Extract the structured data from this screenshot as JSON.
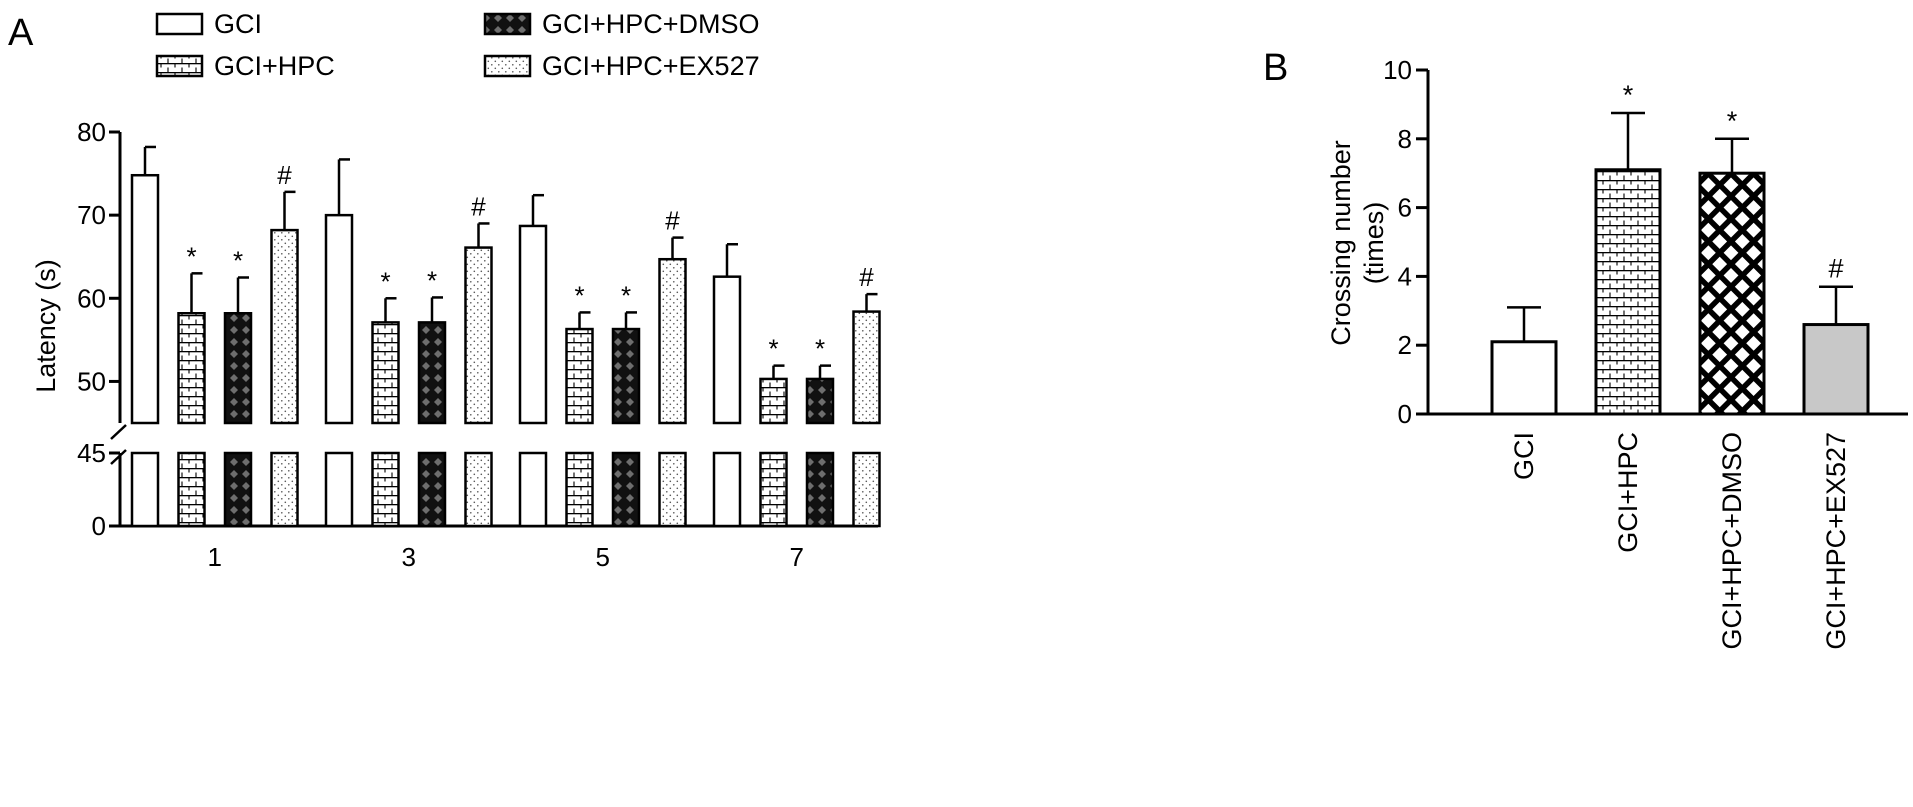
{
  "panels": {
    "a_label": "A",
    "b_label": "B"
  },
  "colors": {
    "ink": "#000000",
    "background": "#ffffff",
    "ex527_fill_panel_b": "#c8c8c8"
  },
  "chart_data": [
    {
      "panel": "A",
      "type": "bar",
      "ylabel": "Latency (s)",
      "xlabel": "",
      "y_axis": "broken",
      "ylim_lower": [
        0,
        45
      ],
      "ylim_upper": [
        45,
        80
      ],
      "yticks_lower": [
        "0",
        "45"
      ],
      "yticks_upper": [
        "50",
        "60",
        "70",
        "80"
      ],
      "categories": [
        "1",
        "3",
        "5",
        "7"
      ],
      "legend": [
        "GCI",
        "GCI+HPC",
        "GCI+HPC+DMSO",
        "GCI+HPC+EX527"
      ],
      "legend_placement": "top",
      "series": [
        {
          "name": "GCI",
          "pattern": "white",
          "values": [
            74.8,
            70.0,
            68.7,
            62.6
          ],
          "error": [
            3.4,
            6.7,
            3.7,
            3.9
          ],
          "marks": [
            "",
            "",
            "",
            ""
          ]
        },
        {
          "name": "GCI+HPC",
          "pattern": "brick",
          "values": [
            58.2,
            57.1,
            56.3,
            50.3
          ],
          "error": [
            4.8,
            2.9,
            2.0,
            1.6
          ],
          "marks": [
            "*",
            "*",
            "*",
            "*"
          ]
        },
        {
          "name": "GCI+HPC+DMSO",
          "pattern": "black-diamond",
          "values": [
            58.2,
            57.1,
            56.3,
            50.3
          ],
          "error": [
            4.3,
            3.0,
            2.0,
            1.6
          ],
          "marks": [
            "*",
            "*",
            "*",
            "*"
          ]
        },
        {
          "name": "GCI+HPC+EX527",
          "pattern": "dots",
          "values": [
            68.2,
            66.1,
            64.7,
            58.4
          ],
          "error": [
            4.6,
            2.9,
            2.6,
            2.1
          ],
          "marks": [
            "#",
            "#",
            "#",
            "#"
          ]
        }
      ]
    },
    {
      "panel": "B",
      "type": "bar",
      "ylabel_lines": [
        "Crossing number",
        "(times)"
      ],
      "xlabel": "",
      "ylim": [
        0,
        10
      ],
      "yticks": [
        "0",
        "2",
        "4",
        "6",
        "8",
        "10"
      ],
      "categories": [
        "GCI",
        "GCI+HPC",
        "GCI+HPC+DMSO",
        "GCI+HPC+EX527"
      ],
      "patterns": [
        "white",
        "brick",
        "crosshatch",
        "gray"
      ],
      "values": [
        2.1,
        7.1,
        7.0,
        2.6
      ],
      "error": [
        1.0,
        1.65,
        1.0,
        1.1
      ],
      "marks": [
        "",
        "*",
        "*",
        "#"
      ]
    }
  ]
}
